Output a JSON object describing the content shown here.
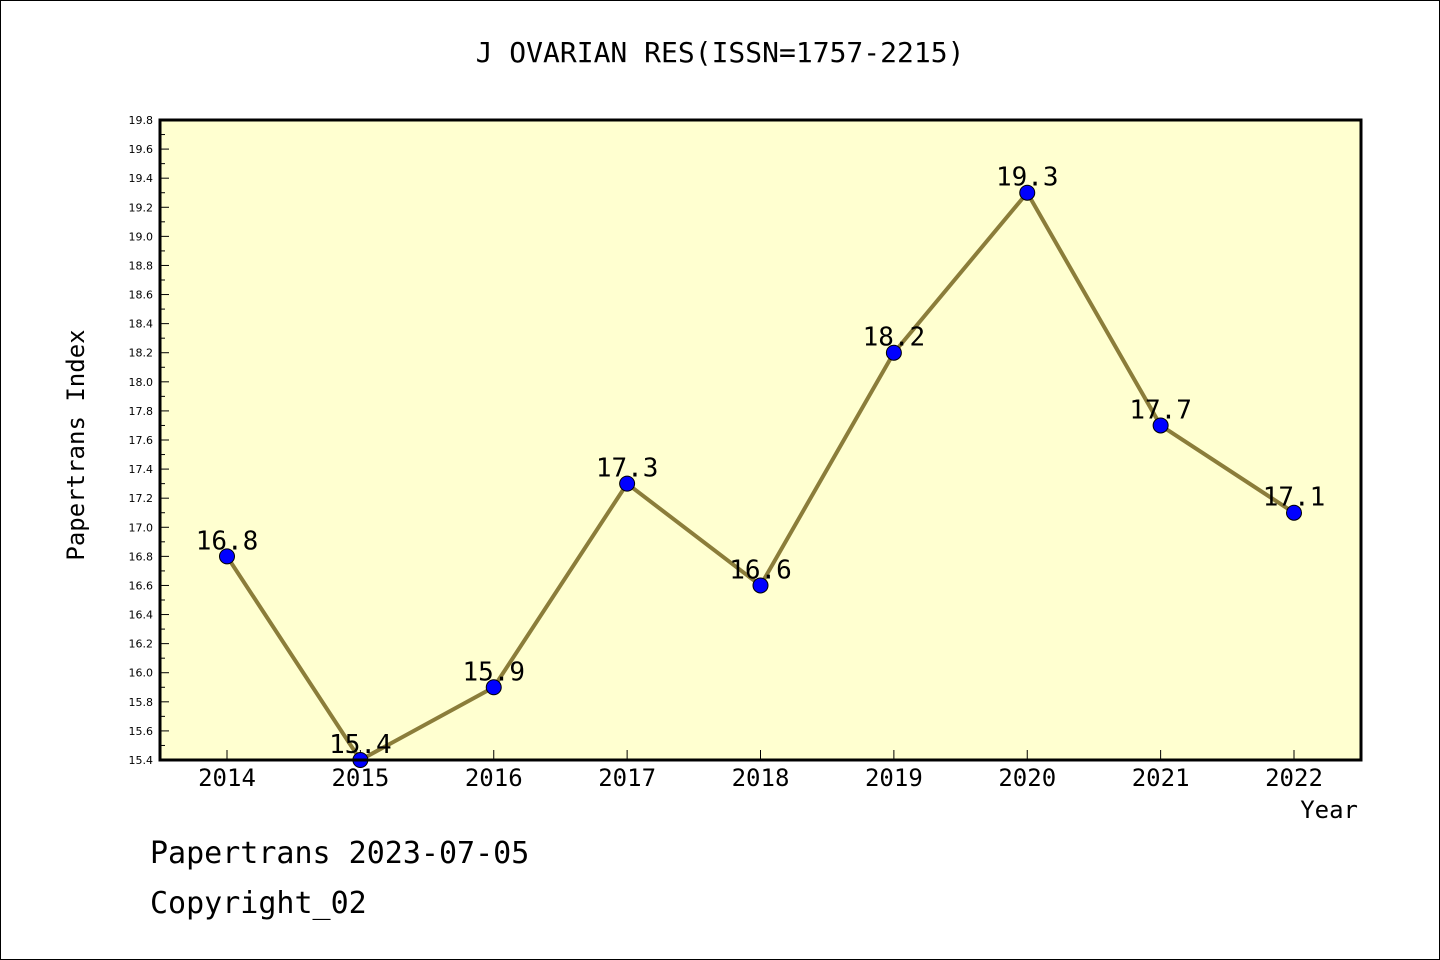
{
  "chart_data": {
    "type": "line",
    "title": "J OVARIAN RES(ISSN=1757-2215)",
    "xlabel": "Year",
    "ylabel": "Papertrans Index",
    "x": [
      "2014",
      "2015",
      "2016",
      "2017",
      "2018",
      "2019",
      "2020",
      "2021",
      "2022"
    ],
    "series": [
      {
        "values": [
          16.8,
          15.4,
          15.9,
          17.3,
          16.6,
          18.2,
          19.3,
          17.7,
          17.1
        ],
        "data_labels": [
          "16.8",
          "15.4",
          "15.9",
          "17.3",
          "16.6",
          "18.2",
          "19.3",
          "17.7",
          "17.1"
        ],
        "line_color": "#8b7d3a",
        "marker_color": "#0000ff"
      }
    ],
    "ylim": [
      15.4,
      19.8
    ],
    "yticks": [
      "15.4",
      "15.6",
      "15.8",
      "16.0",
      "16.2",
      "16.4",
      "16.6",
      "16.8",
      "17.0",
      "17.2",
      "17.4",
      "17.6",
      "17.8",
      "18.0",
      "18.2",
      "18.4",
      "18.6",
      "18.8",
      "19.0",
      "19.2",
      "19.4",
      "19.6",
      "19.8"
    ],
    "plot_background": "#ffffd0",
    "grid": false,
    "legend": "none"
  },
  "footer": {
    "line1": "Papertrans 2023-07-05",
    "line2": "Copyright_02"
  }
}
